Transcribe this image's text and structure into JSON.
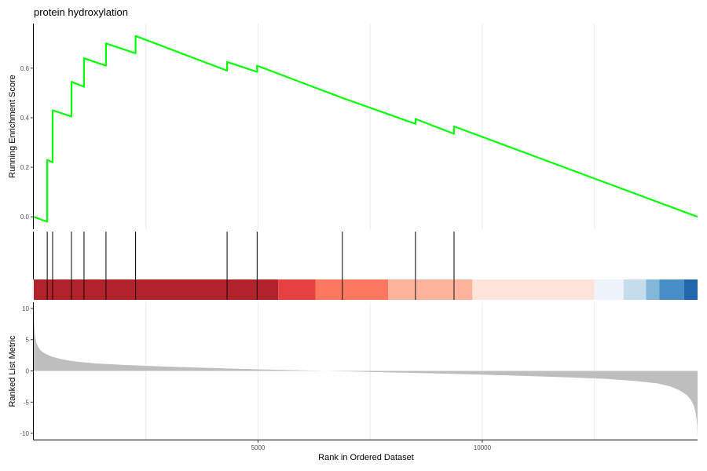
{
  "chart_data": {
    "type": "line",
    "title": "protein hydroxylation",
    "xlabel": "Rank in Ordered Dataset",
    "xlim": [
      0,
      14800
    ],
    "x_ticks": [
      5000,
      10000
    ],
    "x_tick_labels": [
      "5000",
      "10000"
    ],
    "grid": "vertical only",
    "running_es": {
      "ylabel": "Running Enrichment Score",
      "ylim": [
        -0.05,
        0.78
      ],
      "y_ticks": [
        0.0,
        0.2,
        0.4,
        0.6
      ],
      "y_tick_labels": [
        "0.0",
        "0.2",
        "0.4",
        "0.6"
      ],
      "line_color": "#00ff00",
      "x": [
        0,
        300,
        300,
        420,
        420,
        840,
        840,
        1120,
        1120,
        1610,
        1610,
        2270,
        2270,
        4310,
        4310,
        4980,
        4980,
        6880,
        8510,
        8510,
        9370,
        9370,
        14800
      ],
      "y": [
        0.0,
        -0.02,
        0.23,
        0.22,
        0.43,
        0.405,
        0.545,
        0.525,
        0.64,
        0.61,
        0.7,
        0.66,
        0.73,
        0.59,
        0.625,
        0.585,
        0.61,
        0.48,
        0.375,
        0.395,
        0.335,
        0.365,
        0.0
      ]
    },
    "hits": [
      300,
      420,
      840,
      1120,
      1610,
      2270,
      4310,
      4980,
      6880,
      8510,
      9370
    ],
    "rank_color_bands": [
      {
        "start": 0,
        "end": 5450,
        "color": "#b2222a"
      },
      {
        "start": 5450,
        "end": 6280,
        "color": "#e5413f"
      },
      {
        "start": 6280,
        "end": 7900,
        "color": "#fa7760"
      },
      {
        "start": 7900,
        "end": 9780,
        "color": "#fdb39b"
      },
      {
        "start": 9780,
        "end": 12500,
        "color": "#fde4da"
      },
      {
        "start": 12500,
        "end": 13150,
        "color": "#edf2fb"
      },
      {
        "start": 13150,
        "end": 13650,
        "color": "#c5dcec"
      },
      {
        "start": 13650,
        "end": 13950,
        "color": "#82b7da"
      },
      {
        "start": 13950,
        "end": 14500,
        "color": "#4690c7"
      },
      {
        "start": 14500,
        "end": 14800,
        "color": "#2066ab"
      }
    ],
    "ranked_metric": {
      "ylabel": "Ranked List Metric",
      "ylim": [
        -11,
        11
      ],
      "y_ticks": [
        -10,
        -5,
        0,
        5,
        10
      ],
      "y_tick_labels": [
        "-10",
        "-5",
        "0",
        "5",
        "10"
      ],
      "fill_color": "#bebebe",
      "x": [
        0,
        10,
        30,
        60,
        100,
        150,
        220,
        300,
        400,
        550,
        750,
        1000,
        1400,
        2000,
        3000,
        4000,
        5000,
        6000,
        7000,
        8000,
        9000,
        10000,
        11000,
        12000,
        12800,
        13400,
        13900,
        14200,
        14400,
        14550,
        14650,
        14720,
        14760,
        14790,
        14800
      ],
      "y": [
        9.5,
        7.0,
        5.5,
        4.5,
        3.8,
        3.3,
        2.9,
        2.6,
        2.3,
        2.0,
        1.7,
        1.45,
        1.2,
        0.95,
        0.68,
        0.45,
        0.25,
        0.08,
        -0.08,
        -0.25,
        -0.42,
        -0.6,
        -0.82,
        -1.05,
        -1.3,
        -1.6,
        -2.0,
        -2.5,
        -3.1,
        -3.8,
        -4.6,
        -5.6,
        -6.8,
        -8.5,
        -10.8
      ]
    }
  }
}
